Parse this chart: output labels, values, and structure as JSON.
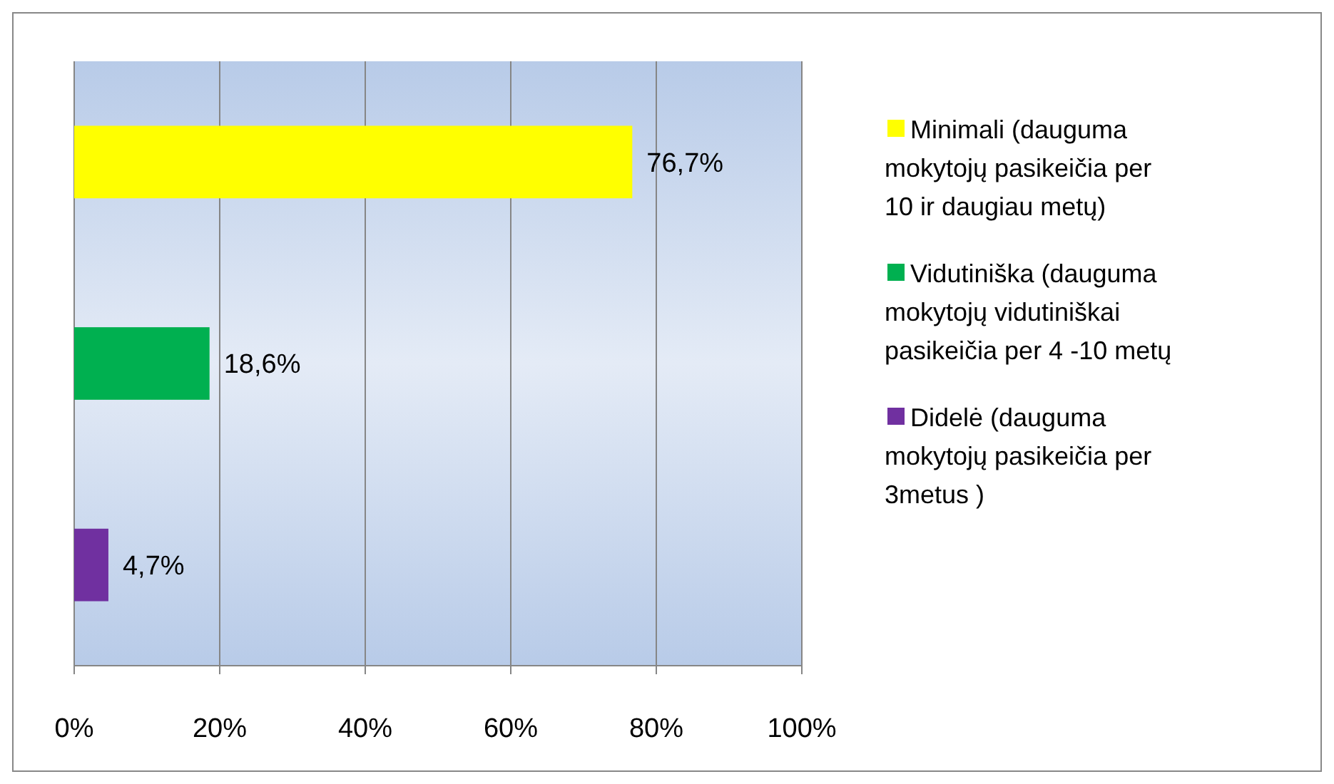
{
  "chart_data": {
    "type": "bar",
    "orientation": "horizontal",
    "categories": [
      null,
      null,
      null
    ],
    "series": [
      {
        "name": "Minimali (dauguma mokytojų pasikeičia per 10 ir daugiau metų)",
        "color": "#ffff00",
        "values": [
          76.7,
          null,
          null
        ],
        "value_labels": [
          "76,7%",
          null,
          null
        ]
      },
      {
        "name": "Vidutiniška (dauguma mokytojų vidutiniškai pasikeičia per 4 -10 metų",
        "color": "#00b050",
        "values": [
          null,
          18.6,
          null
        ],
        "value_labels": [
          null,
          "18,6%",
          null
        ]
      },
      {
        "name": "Didelė (dauguma mokytojų pasikeičia per 3metus )",
        "color": "#7030a0",
        "values": [
          null,
          null,
          4.7
        ],
        "value_labels": [
          null,
          null,
          "4,7%"
        ]
      }
    ],
    "xlim": [
      0,
      100
    ],
    "xticks": [
      {
        "value": 0,
        "label": "0%"
      },
      {
        "value": 20,
        "label": "20%"
      },
      {
        "value": 40,
        "label": "40%"
      },
      {
        "value": 60,
        "label": "60%"
      },
      {
        "value": 80,
        "label": "80%"
      },
      {
        "value": 100,
        "label": "100%"
      }
    ],
    "grid": "x",
    "legend": "right"
  }
}
